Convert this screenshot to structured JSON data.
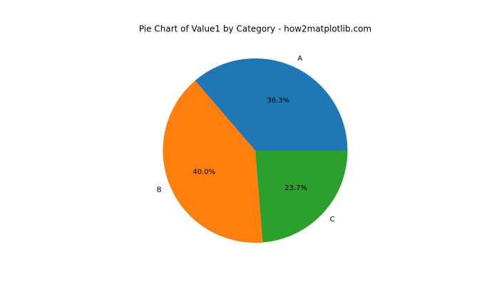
{
  "chart_data": {
    "type": "pie",
    "title": "Pie Chart of Value1 by Category - how2matplotlib.com",
    "categories": [
      "A",
      "B",
      "C"
    ],
    "values": [
      36.3,
      40.0,
      23.7
    ],
    "value_labels": [
      "36.3%",
      "40.0%",
      "23.7%"
    ],
    "colors": [
      "#1f77b4",
      "#ff7f0e",
      "#2ca02c"
    ]
  }
}
